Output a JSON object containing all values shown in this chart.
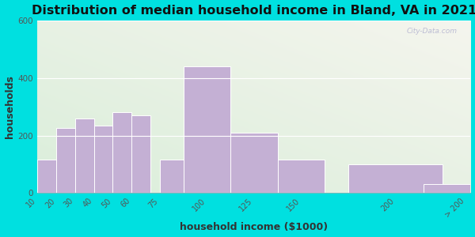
{
  "title": "Distribution of median household income in Bland, VA in 2021",
  "xlabel": "household income ($1000)",
  "ylabel": "households",
  "bar_labels": [
    "10",
    "20",
    "30",
    "40",
    "50",
    "60",
    "75",
    "100",
    "125",
    "150",
    "200",
    "> 200"
  ],
  "bar_lefts": [
    10,
    20,
    30,
    40,
    50,
    60,
    75,
    87.5,
    112.5,
    137.5,
    175,
    215
  ],
  "bar_widths": [
    10,
    10,
    10,
    10,
    10,
    10,
    12.5,
    25,
    25,
    25,
    50,
    25
  ],
  "bar_values": [
    115,
    225,
    260,
    235,
    280,
    270,
    115,
    440,
    210,
    115,
    100,
    30
  ],
  "bar_color": "#c4b0d4",
  "bar_edge_color": "#ffffff",
  "ylim": [
    0,
    600
  ],
  "yticks": [
    0,
    200,
    400,
    600
  ],
  "xlim": [
    10,
    240
  ],
  "xtick_positions": [
    10,
    20,
    30,
    40,
    50,
    60,
    75,
    100,
    125,
    150,
    200,
    237.5
  ],
  "xtick_labels": [
    "10",
    "20",
    "30",
    "40",
    "50",
    "60",
    "75",
    "100",
    "125",
    "150",
    "200",
    "> 200"
  ],
  "background_outer": "#00e0e0",
  "background_plot_top_left": "#daeeda",
  "background_plot_bottom_right": "#f5f5ee",
  "title_fontsize": 11.5,
  "axis_label_fontsize": 9,
  "watermark": "City-Data.com"
}
